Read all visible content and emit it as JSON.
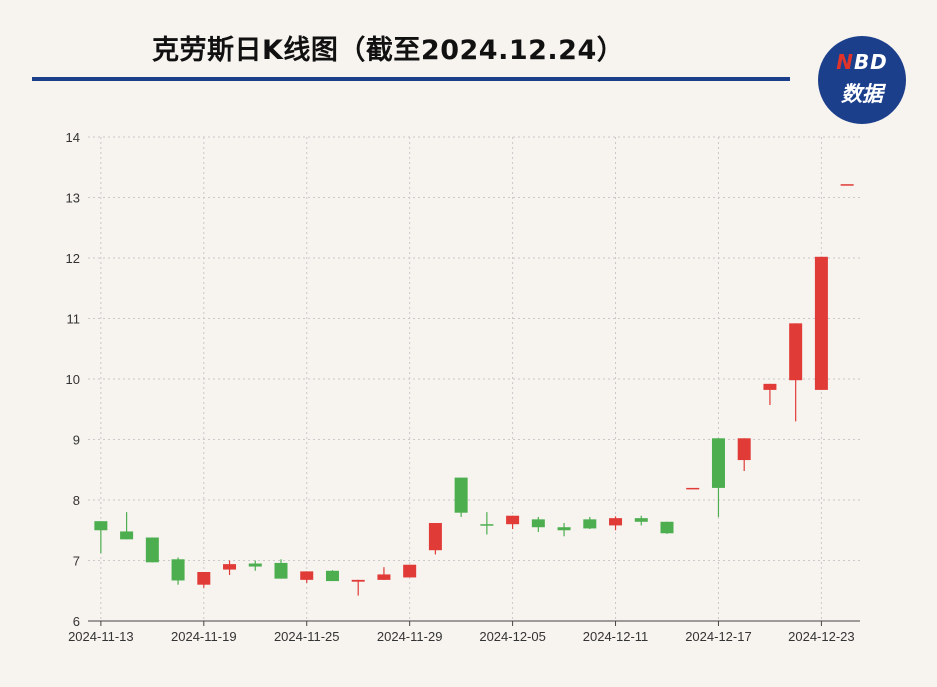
{
  "header": {
    "title": "克劳斯日K线图（截至2024.12.24）"
  },
  "logo": {
    "top_prefix": "N",
    "top_rest": "BD",
    "bottom": "数据"
  },
  "colors": {
    "up": "#e03b37",
    "down": "#4cae4f",
    "grid": "#c9c9c9",
    "axis": "#444444",
    "brand": "#1c3f8c"
  },
  "chart_data": {
    "type": "candlestick",
    "title": "克劳斯日K线图（截至2024.12.24）",
    "xlabel": "",
    "ylabel": "",
    "ylim": [
      6,
      14
    ],
    "yticks": [
      6,
      7,
      8,
      9,
      10,
      11,
      12,
      13,
      14
    ],
    "xtick_labels": [
      "2024-11-13",
      "2024-11-19",
      "2024-11-25",
      "2024-11-29",
      "2024-12-05",
      "2024-12-11",
      "2024-12-17",
      "2024-12-23"
    ],
    "grid": true,
    "candles": [
      {
        "date": "2024-11-13",
        "open": 7.65,
        "close": 7.5,
        "high": 7.65,
        "low": 7.12
      },
      {
        "date": "2024-11-14",
        "open": 7.48,
        "close": 7.35,
        "high": 7.8,
        "low": 7.35
      },
      {
        "date": "2024-11-15",
        "open": 7.38,
        "close": 6.97,
        "high": 7.38,
        "low": 6.97
      },
      {
        "date": "2024-11-18",
        "open": 7.02,
        "close": 6.67,
        "high": 7.05,
        "low": 6.6
      },
      {
        "date": "2024-11-19",
        "open": 6.6,
        "close": 6.81,
        "high": 6.81,
        "low": 6.55
      },
      {
        "date": "2024-11-20",
        "open": 6.85,
        "close": 6.94,
        "high": 7.0,
        "low": 6.76
      },
      {
        "date": "2024-11-21",
        "open": 6.95,
        "close": 6.9,
        "high": 7.0,
        "low": 6.83
      },
      {
        "date": "2024-11-22",
        "open": 6.96,
        "close": 6.7,
        "high": 7.02,
        "low": 6.7
      },
      {
        "date": "2024-11-25",
        "open": 6.68,
        "close": 6.82,
        "high": 6.82,
        "low": 6.63
      },
      {
        "date": "2024-11-26",
        "open": 6.83,
        "close": 6.66,
        "high": 6.84,
        "low": 6.66
      },
      {
        "date": "2024-11-27",
        "open": 6.65,
        "close": 6.68,
        "high": 6.68,
        "low": 6.42
      },
      {
        "date": "2024-11-28",
        "open": 6.68,
        "close": 6.77,
        "high": 6.89,
        "low": 6.68
      },
      {
        "date": "2024-11-29",
        "open": 6.72,
        "close": 6.93,
        "high": 6.93,
        "low": 6.72
      },
      {
        "date": "2024-12-02",
        "open": 7.17,
        "close": 7.62,
        "high": 7.62,
        "low": 7.1
      },
      {
        "date": "2024-12-03",
        "open": 8.37,
        "close": 7.79,
        "high": 8.37,
        "low": 7.72
      },
      {
        "date": "2024-12-04",
        "open": 7.6,
        "close": 7.58,
        "high": 7.8,
        "low": 7.43
      },
      {
        "date": "2024-12-05",
        "open": 7.6,
        "close": 7.74,
        "high": 7.74,
        "low": 7.52
      },
      {
        "date": "2024-12-06",
        "open": 7.68,
        "close": 7.55,
        "high": 7.72,
        "low": 7.47
      },
      {
        "date": "2024-12-09",
        "open": 7.55,
        "close": 7.5,
        "high": 7.62,
        "low": 7.4
      },
      {
        "date": "2024-12-10",
        "open": 7.68,
        "close": 7.53,
        "high": 7.72,
        "low": 7.52
      },
      {
        "date": "2024-12-11",
        "open": 7.58,
        "close": 7.7,
        "high": 7.73,
        "low": 7.5
      },
      {
        "date": "2024-12-12",
        "open": 7.7,
        "close": 7.64,
        "high": 7.74,
        "low": 7.58
      },
      {
        "date": "2024-12-13",
        "open": 7.64,
        "close": 7.45,
        "high": 7.64,
        "low": 7.44
      },
      {
        "date": "2024-12-16",
        "open": 8.2,
        "close": 8.2,
        "high": 8.2,
        "low": 8.2
      },
      {
        "date": "2024-12-17",
        "open": 9.02,
        "close": 8.2,
        "high": 9.02,
        "low": 7.72
      },
      {
        "date": "2024-12-18",
        "open": 8.66,
        "close": 9.02,
        "high": 9.02,
        "low": 8.48
      },
      {
        "date": "2024-12-19",
        "open": 9.82,
        "close": 9.92,
        "high": 9.92,
        "low": 9.57
      },
      {
        "date": "2024-12-20",
        "open": 9.98,
        "close": 10.92,
        "high": 10.92,
        "low": 9.3
      },
      {
        "date": "2024-12-23",
        "open": 9.82,
        "close": 12.02,
        "high": 12.02,
        "low": 9.82
      },
      {
        "date": "2024-12-24",
        "open": 13.22,
        "close": 13.22,
        "high": 13.22,
        "low": 13.22
      }
    ]
  }
}
